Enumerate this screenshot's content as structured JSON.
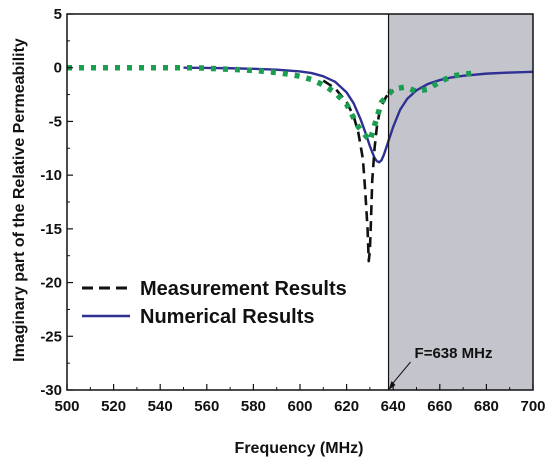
{
  "chart_data": {
    "type": "line",
    "title": "",
    "xlabel": "Frequency (MHz)",
    "ylabel": "Imaginary part of the Relative Permeability",
    "xlim": [
      500,
      700
    ],
    "ylim": [
      -30,
      5
    ],
    "x_ticks": [
      500,
      520,
      540,
      560,
      580,
      600,
      620,
      640,
      660,
      680,
      700
    ],
    "y_ticks": [
      5,
      0,
      -5,
      -10,
      -15,
      -20,
      -25,
      -30
    ],
    "grid": false,
    "legend_position": "lower-left",
    "shaded_region": {
      "x_start": 638,
      "x_end": 700,
      "color": "#c4c5cc"
    },
    "annotation": {
      "text": "F=638 MHz",
      "x": 638,
      "y": -30
    },
    "series": [
      {
        "name": "Measurement Results",
        "style": "dashed",
        "color": "#111111",
        "x": [
          610,
          615,
          620,
          623,
          625,
          627,
          628,
          629,
          629.5,
          630,
          630.5,
          631,
          632,
          633,
          634,
          635,
          636,
          637,
          638,
          640
        ],
        "y": [
          -1.2,
          -1.9,
          -3.2,
          -4.5,
          -6.0,
          -8.5,
          -11.5,
          -15.0,
          -18.0,
          -17.0,
          -14.0,
          -10.5,
          -7.5,
          -5.5,
          -4.3,
          -3.6,
          -3.1,
          -2.7,
          -2.4,
          -2.1
        ]
      },
      {
        "name": "Measurement Results",
        "style": "dotted",
        "color": "#1a9e4f",
        "x": [
          500,
          505,
          510,
          515,
          520,
          525,
          530,
          535,
          540,
          545,
          550,
          555,
          560,
          565,
          570,
          575,
          580,
          585,
          590,
          595,
          600,
          605,
          610,
          615,
          620,
          625,
          630,
          635,
          640,
          645,
          650,
          655,
          660,
          665,
          670,
          675
        ],
        "y": [
          0,
          0,
          0,
          0,
          0,
          0,
          0,
          0,
          0,
          0,
          0,
          0,
          -0.05,
          -0.1,
          -0.15,
          -0.2,
          -0.25,
          -0.35,
          -0.45,
          -0.6,
          -0.8,
          -1.1,
          -1.6,
          -2.3,
          -3.4,
          -5.5,
          -6.8,
          -3.2,
          -2.0,
          -1.8,
          -2.2,
          -2.0,
          -1.3,
          -0.8,
          -0.6,
          -0.5
        ]
      },
      {
        "name": "Numerical Results",
        "style": "solid",
        "color": "#2e3192",
        "x": [
          550,
          560,
          570,
          580,
          590,
          600,
          605,
          610,
          615,
          620,
          623,
          626,
          628,
          630,
          632,
          633,
          634,
          635,
          636,
          638,
          640,
          643,
          646,
          650,
          655,
          660,
          665,
          670,
          680,
          690,
          700
        ],
        "y": [
          0,
          -0.02,
          -0.05,
          -0.1,
          -0.18,
          -0.35,
          -0.5,
          -0.8,
          -1.3,
          -2.3,
          -3.3,
          -4.8,
          -6.0,
          -7.3,
          -8.4,
          -8.7,
          -8.8,
          -8.6,
          -8.1,
          -6.8,
          -5.5,
          -3.9,
          -2.9,
          -2.1,
          -1.5,
          -1.15,
          -0.9,
          -0.75,
          -0.55,
          -0.45,
          -0.38
        ]
      }
    ]
  }
}
